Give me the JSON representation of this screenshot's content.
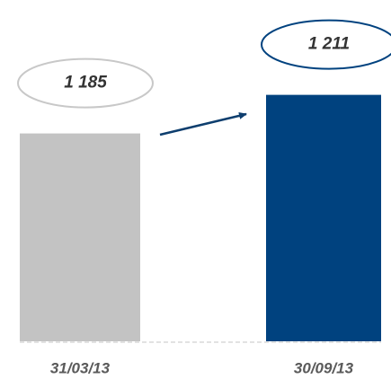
{
  "chart_data": {
    "type": "bar",
    "categories": [
      "31/03/13",
      "30/09/13"
    ],
    "values": [
      1185,
      1211
    ],
    "value_labels": [
      "1 185",
      "1 211"
    ],
    "colors": [
      "#c3c3c3",
      "#00427f"
    ],
    "ylim": [
      1045,
      1215
    ]
  }
}
